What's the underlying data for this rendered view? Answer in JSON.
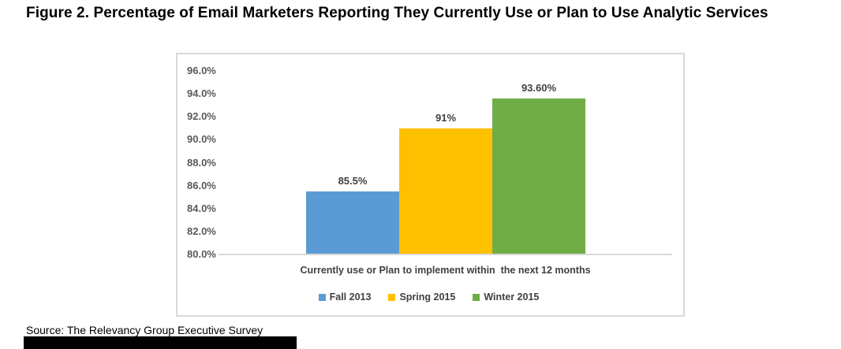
{
  "title": "Figure 2. Percentage of Email Marketers Reporting They Currently Use or Plan to Use Analytic Services",
  "source": "Source: The Relevancy Group Executive Survey",
  "chart_data": {
    "type": "bar",
    "title": "Figure 2. Percentage of Email Marketers Reporting They Currently Use or Plan to Use Analytic Services",
    "xlabel": "Currently use or Plan to implement within  the next 12 months",
    "ylabel": "",
    "ylim": [
      80,
      96
    ],
    "ytick_step": 2,
    "grid": false,
    "legend_position": "bottom",
    "categories": [
      "Currently use or Plan to implement within the next 12 months"
    ],
    "yticks": [
      {
        "label": "96.0%",
        "value": 96
      },
      {
        "label": "94.0%",
        "value": 94
      },
      {
        "label": "92.0%",
        "value": 92
      },
      {
        "label": "90.0%",
        "value": 90
      },
      {
        "label": "88.0%",
        "value": 88
      },
      {
        "label": "86.0%",
        "value": 86
      },
      {
        "label": "84.0%",
        "value": 84
      },
      {
        "label": "82.0%",
        "value": 82
      },
      {
        "label": "80.0%",
        "value": 80
      }
    ],
    "series": [
      {
        "name": "Fall 2013",
        "value": 85.5,
        "label": "85.5%",
        "color": "#5b9bd5"
      },
      {
        "name": "Spring 2015",
        "value": 91,
        "label": "91%",
        "color": "#ffc000"
      },
      {
        "name": "Winter 2015",
        "value": 93.6,
        "label": "93.60%",
        "color": "#70ad47"
      }
    ]
  },
  "colors": {
    "axis_line": "#d9d9d9",
    "box_border": "#d9d9d9",
    "axis_label_text": "#595959",
    "data_label_text": "#404040",
    "title_text": "#000000",
    "redaction": "#000000"
  }
}
